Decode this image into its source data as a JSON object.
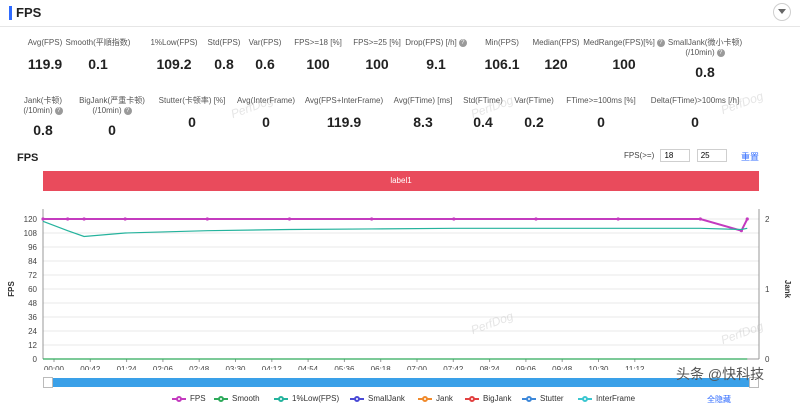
{
  "header": {
    "title": "FPS"
  },
  "metrics": [
    {
      "label": "Avg(FPS)",
      "value": "119.9",
      "help": false
    },
    {
      "label": "Smooth(平順指数)",
      "value": "0.1",
      "help": false
    },
    {
      "label": "1%Low(FPS)",
      "value": "109.2",
      "help": false
    },
    {
      "label": "Std(FPS)",
      "value": "0.8",
      "help": false
    },
    {
      "label": "Var(FPS)",
      "value": "0.6",
      "help": false
    },
    {
      "label": "FPS>=18 [%]",
      "value": "100",
      "help": false
    },
    {
      "label": "FPS>=25 [%]",
      "value": "100",
      "help": false
    },
    {
      "label": "Drop(FPS) [/h]",
      "value": "9.1",
      "help": true
    },
    {
      "label": "Min(FPS)",
      "value": "106.1",
      "help": false
    },
    {
      "label": "Median(FPS)",
      "value": "120",
      "help": false
    },
    {
      "label": "MedRange(FPS)[%]",
      "value": "100",
      "help": true
    },
    {
      "label": "SmallJank(微小卡顿)",
      "label2": "(/10min)",
      "value": "0.8",
      "help": true
    }
  ],
  "metrics_row2": [
    {
      "label": "Jank(卡顿)",
      "label2": "(/10min)",
      "value": "0.8",
      "help": true
    },
    {
      "label": "BigJank(严重卡顿)",
      "label2": "(/10min)",
      "value": "0",
      "help": true
    },
    {
      "label": "Stutter(卡顿率) [%]",
      "value": "0",
      "help": false
    },
    {
      "label": "Avg(InterFrame)",
      "value": "0",
      "help": false
    },
    {
      "label": "Avg(FPS+InterFrame)",
      "value": "119.9",
      "help": false
    },
    {
      "label": "Avg(FTime) [ms]",
      "value": "8.3",
      "help": false
    },
    {
      "label": "Std(FTime)",
      "value": "0.4",
      "help": false
    },
    {
      "label": "Var(FTime)",
      "value": "0.2",
      "help": false
    },
    {
      "label": "FTime>=100ms [%]",
      "value": "0",
      "help": false
    },
    {
      "label": "Delta(FTime)>100ms [/h]",
      "value": "0",
      "help": false
    }
  ],
  "chart_section": {
    "title": "FPS",
    "filter_label": "FPS(>=)",
    "filter_values": [
      "18",
      "25"
    ],
    "reset_label": "重置",
    "label_bar_text": "label1"
  },
  "chart_data": {
    "type": "line",
    "ylabel": "FPS",
    "y2label": "Jank",
    "ylim": [
      0,
      120
    ],
    "y2lim": [
      0,
      2
    ],
    "yticks": [
      0,
      12,
      24,
      36,
      48,
      60,
      72,
      84,
      96,
      108,
      120
    ],
    "y2ticks": [
      0,
      1,
      2
    ],
    "xticks": [
      "00:00",
      "00:42",
      "01:24",
      "02:06",
      "02:48",
      "03:30",
      "04:12",
      "04:54",
      "05:36",
      "06:18",
      "07:00",
      "07:42",
      "08:24",
      "09:06",
      "09:48",
      "10:30",
      "11:12"
    ],
    "x_minutes": [
      0,
      0.42,
      0.7,
      1.4,
      2.8,
      4.2,
      5.6,
      7.0,
      8.4,
      9.8,
      11.2,
      11.9,
      12.0
    ],
    "series": [
      {
        "name": "FPS",
        "color": "#c43bbf",
        "values": [
          120,
          120,
          120,
          120,
          120,
          120,
          120,
          120,
          120,
          120,
          120,
          110,
          120
        ]
      },
      {
        "name": "Smooth",
        "color": "#2eaa5b",
        "values": [
          0,
          0,
          0,
          0,
          0,
          0,
          0,
          0,
          0,
          0,
          0,
          0,
          0
        ]
      },
      {
        "name": "1%Low(FPS)",
        "color": "#25b39d",
        "values": [
          118,
          110,
          105,
          108,
          110,
          111,
          111.5,
          112,
          112,
          112,
          112,
          111,
          112
        ]
      },
      {
        "name": "SmallJank",
        "color": "#4a4ad6",
        "values": []
      },
      {
        "name": "Jank",
        "color": "#f08a2c",
        "values": []
      },
      {
        "name": "BigJank",
        "color": "#e24141",
        "values": []
      },
      {
        "name": "Stutter",
        "color": "#3d88d9",
        "values": []
      },
      {
        "name": "InterFrame",
        "color": "#3bc6d0",
        "values": []
      }
    ],
    "grid": true,
    "legend_position": "bottom"
  },
  "legend_toggle": "全隐藏",
  "watermarks": [
    "PerfDog",
    "PerfDog",
    "PerfDog",
    "PerfDog",
    "PerfDog"
  ],
  "brand_watermark": "头条 @快科技"
}
